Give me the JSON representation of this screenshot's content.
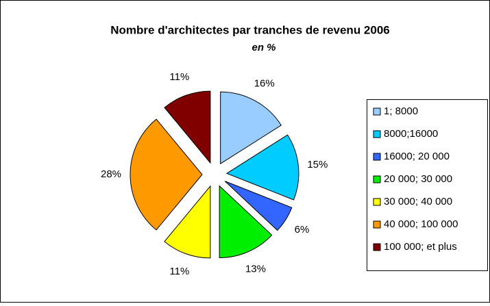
{
  "chart_data": {
    "type": "pie",
    "title": "Nombre d'architectes par tranches de revenu 2006",
    "subtitle": "en %",
    "categories": [
      "1; 8000",
      "8000;16000",
      "16000; 20 000",
      "20 000; 30 000",
      "30 000; 40 000",
      "40 000; 100 000",
      "100 000; et plus"
    ],
    "values": [
      16,
      15,
      6,
      13,
      11,
      28,
      11
    ],
    "value_labels": [
      "16%",
      "15%",
      "6%",
      "13%",
      "11%",
      "28%",
      "11%"
    ],
    "colors": [
      "#99ccff",
      "#00ccff",
      "#3366ff",
      "#00ee00",
      "#ffff00",
      "#ff9900",
      "#800000"
    ],
    "legend": "right"
  }
}
